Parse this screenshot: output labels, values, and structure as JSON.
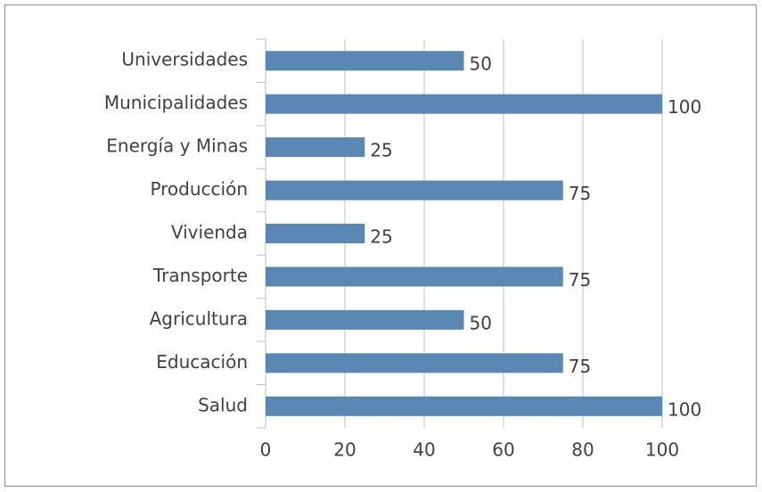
{
  "chart_data": {
    "type": "bar",
    "orientation": "horizontal",
    "categories": [
      "Universidades",
      "Municipalidades",
      "Energía y Minas",
      "Producción",
      "Vivienda",
      "Transporte",
      "Agricultura",
      "Educación",
      "Salud"
    ],
    "values": [
      50,
      100,
      25,
      75,
      25,
      75,
      50,
      75,
      100
    ],
    "color": "#5b87b5",
    "xlim": [
      0,
      100
    ],
    "xticks": [
      0,
      20,
      40,
      60,
      80,
      100
    ],
    "grid": true
  }
}
